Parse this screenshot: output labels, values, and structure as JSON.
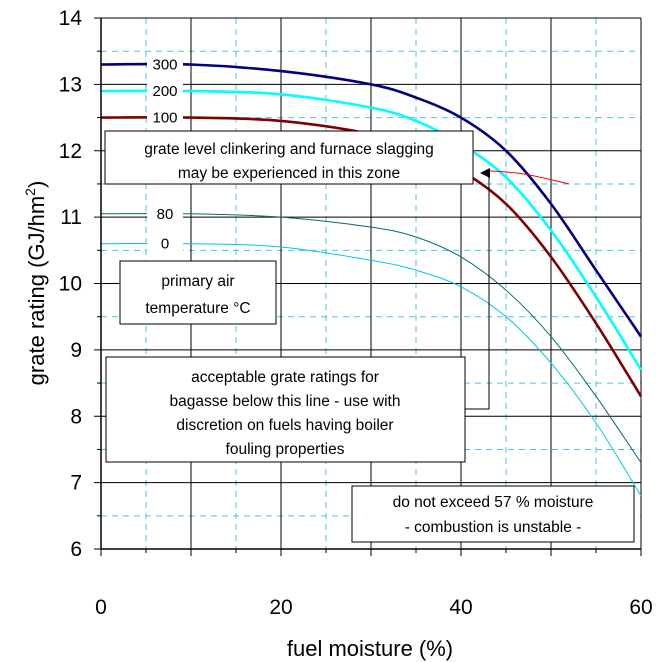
{
  "chart_data": {
    "type": "line",
    "xlabel": "fuel moisture (%)",
    "ylabel": "grate rating (GJ/hm²)",
    "ylabel_base": "grate rating (GJ/hm",
    "ylabel_sup": "2",
    "ylabel_end": ")",
    "xlim": [
      0,
      60
    ],
    "ylim": [
      6,
      14
    ],
    "xticks": [
      0,
      20,
      40,
      60
    ],
    "yticks": [
      6,
      7,
      8,
      9,
      10,
      11,
      12,
      13,
      14
    ],
    "grid": true,
    "series": [
      {
        "name": "300",
        "color": "#000080",
        "x": [
          0,
          10,
          20,
          30,
          35,
          40,
          45,
          50,
          55,
          60
        ],
        "y": [
          13.3,
          13.3,
          13.2,
          13.0,
          12.8,
          12.5,
          12.0,
          11.2,
          10.2,
          9.2
        ]
      },
      {
        "name": "200",
        "color": "#00ffff",
        "x": [
          0,
          10,
          20,
          30,
          35,
          40,
          45,
          50,
          55,
          60
        ],
        "y": [
          12.9,
          12.9,
          12.85,
          12.65,
          12.45,
          12.1,
          11.6,
          10.8,
          9.8,
          8.7
        ]
      },
      {
        "name": "100",
        "color": "#800000",
        "x": [
          0,
          10,
          20,
          30,
          35,
          40,
          45,
          50,
          55,
          60
        ],
        "y": [
          12.5,
          12.5,
          12.45,
          12.25,
          12.0,
          11.7,
          11.2,
          10.4,
          9.4,
          8.3
        ]
      },
      {
        "name": "80",
        "color": "#006e6e",
        "x": [
          0,
          10,
          20,
          30,
          35,
          40,
          45,
          50,
          55,
          60
        ],
        "y": [
          11.05,
          11.05,
          11.0,
          10.85,
          10.7,
          10.4,
          9.9,
          9.2,
          8.3,
          7.3
        ]
      },
      {
        "name": "0",
        "color": "#00c8e6",
        "x": [
          0,
          10,
          20,
          30,
          35,
          40,
          45,
          50,
          55,
          60
        ],
        "y": [
          10.6,
          10.6,
          10.55,
          10.35,
          10.2,
          9.95,
          9.5,
          8.8,
          7.9,
          6.8
        ]
      }
    ],
    "red_line": {
      "color": "#ff0000",
      "x": [
        43,
        47,
        52
      ],
      "y": [
        11.7,
        11.65,
        11.5
      ]
    },
    "annotations": {
      "clinkering": [
        "grate level clinkering and furnace slagging",
        "may be experienced in this zone"
      ],
      "primary_air": [
        "primary air",
        "temperature °C"
      ],
      "acceptable": [
        "acceptable grate ratings for",
        "bagasse below this line - use with",
        "discretion on fuels having boiler",
        "fouling properties"
      ],
      "moisture_limit": [
        "do not exceed 57 % moisture",
        "- combustion is unstable -"
      ]
    }
  }
}
